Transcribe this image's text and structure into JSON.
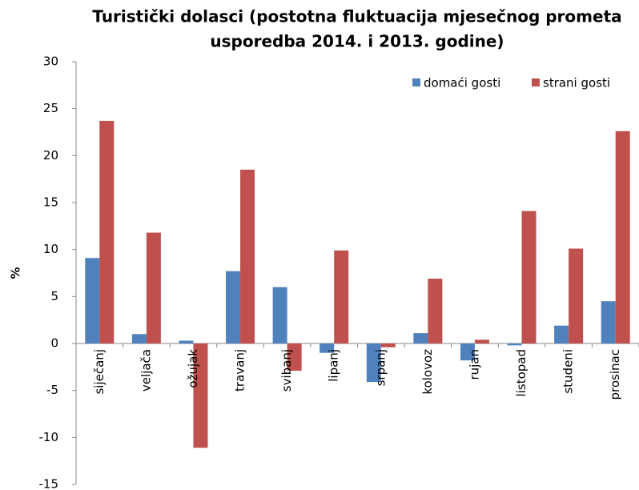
{
  "chart_data": {
    "type": "bar",
    "title": [
      "Turistički dolasci (postotna fluktuacija mjesečnog prometa",
      "usporedba 2014. i 2013. godine)"
    ],
    "y_label": "%",
    "categories": [
      "siječanj",
      "veljača",
      "ožujak",
      "travanj",
      "svibanj",
      "lipanj",
      "srpanj",
      "kolovoz",
      "rujan",
      "listopad",
      "studeni",
      "prosinac"
    ],
    "series": [
      {
        "name": "domaći gosti",
        "color": "#4f81bd",
        "values": [
          9.1,
          1.0,
          0.3,
          7.7,
          6.0,
          -1.0,
          -4.1,
          1.1,
          -1.8,
          -0.2,
          1.9,
          4.5
        ]
      },
      {
        "name": "strani gosti",
        "color": "#c0504d",
        "values": [
          23.7,
          11.8,
          -11.1,
          18.5,
          -2.9,
          9.9,
          -0.4,
          6.9,
          0.4,
          14.1,
          10.1,
          22.6
        ]
      }
    ],
    "ylim": [
      -15,
      30
    ],
    "yticks": [
      -15,
      -10,
      -5,
      0,
      5,
      10,
      15,
      20,
      25,
      30
    ],
    "grid": false,
    "legend": "top-right"
  }
}
